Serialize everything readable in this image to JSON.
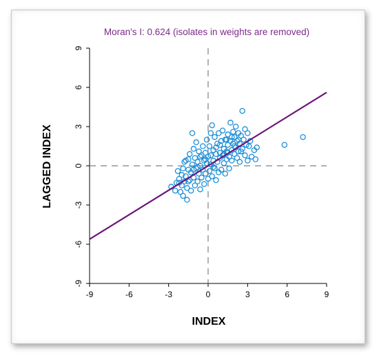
{
  "chart_data": {
    "type": "scatter",
    "title": "Moran's I: 0.624 (isolates in weights are removed)",
    "xlabel": "INDEX",
    "ylabel": "LAGGED INDEX",
    "xlim": [
      -9,
      9
    ],
    "ylim": [
      -9,
      9
    ],
    "xticks": [
      "-9",
      "-6",
      "-3",
      "0",
      "3",
      "6",
      "9"
    ],
    "yticks": [
      "9",
      "6",
      "3",
      "0",
      "-3",
      "-6",
      "-9"
    ],
    "regression_line": {
      "slope": 0.624,
      "intercept": 0
    },
    "reference_lines": [
      "x = 0",
      "y = 0"
    ],
    "colors": {
      "points": "#1f8fd8",
      "regression": "#6b1478",
      "title": "#7b2a8a",
      "reference": "#7f7f7f"
    },
    "points": [
      [
        -2.8,
        -1.6
      ],
      [
        -2.5,
        -1.9
      ],
      [
        -2.4,
        -1.3
      ],
      [
        -2.3,
        -0.4
      ],
      [
        -2.2,
        -1.0
      ],
      [
        -2.1,
        -2.0
      ],
      [
        -2.0,
        -0.7
      ],
      [
        -2.0,
        -1.5
      ],
      [
        -1.9,
        -2.3
      ],
      [
        -1.9,
        -0.2
      ],
      [
        -1.8,
        -1.2
      ],
      [
        -1.8,
        0.3
      ],
      [
        -1.7,
        -0.8
      ],
      [
        -1.6,
        -2.6
      ],
      [
        -1.6,
        -1.7
      ],
      [
        -1.5,
        0.5
      ],
      [
        -1.5,
        -0.3
      ],
      [
        -1.4,
        -1.1
      ],
      [
        -1.4,
        0.9
      ],
      [
        -1.3,
        -0.5
      ],
      [
        -1.3,
        -1.9
      ],
      [
        -1.2,
        0.1
      ],
      [
        -1.2,
        2.5
      ],
      [
        -1.1,
        -0.9
      ],
      [
        -1.1,
        1.3
      ],
      [
        -1.0,
        -1.5
      ],
      [
        -1.0,
        0.6
      ],
      [
        -0.9,
        -0.2
      ],
      [
        -0.9,
        1.8
      ],
      [
        -0.8,
        -1.2
      ],
      [
        -0.8,
        0.3
      ],
      [
        -0.7,
        -0.6
      ],
      [
        -0.7,
        1.1
      ],
      [
        -0.6,
        -1.8
      ],
      [
        -0.6,
        0.0
      ],
      [
        -0.5,
        0.8
      ],
      [
        -0.5,
        -0.9
      ],
      [
        -0.4,
        1.5
      ],
      [
        -0.4,
        -0.3
      ],
      [
        -0.3,
        0.4
      ],
      [
        -0.3,
        -1.4
      ],
      [
        -0.2,
        1.0
      ],
      [
        -0.2,
        -0.6
      ],
      [
        -0.1,
        0.2
      ],
      [
        -0.1,
        2.0
      ],
      [
        0.0,
        -1.0
      ],
      [
        0.0,
        0.7
      ],
      [
        0.1,
        1.5
      ],
      [
        0.1,
        -0.4
      ],
      [
        0.2,
        2.5
      ],
      [
        0.2,
        0.1
      ],
      [
        0.3,
        3.1
      ],
      [
        0.3,
        -0.8
      ],
      [
        0.4,
        1.2
      ],
      [
        0.4,
        0.4
      ],
      [
        0.5,
        2.2
      ],
      [
        0.5,
        -0.2
      ],
      [
        0.6,
        0.9
      ],
      [
        0.6,
        -1.1
      ],
      [
        0.7,
        1.7
      ],
      [
        0.7,
        0.3
      ],
      [
        0.8,
        2.5
      ],
      [
        0.8,
        -0.5
      ],
      [
        0.9,
        1.0
      ],
      [
        0.9,
        0.6
      ],
      [
        1.0,
        1.9
      ],
      [
        1.0,
        -0.3
      ],
      [
        1.1,
        0.8
      ],
      [
        1.1,
        2.7
      ],
      [
        1.2,
        1.3
      ],
      [
        1.2,
        0.2
      ],
      [
        1.3,
        2.0
      ],
      [
        1.3,
        -0.6
      ],
      [
        1.4,
        1.1
      ],
      [
        1.4,
        0.5
      ],
      [
        1.5,
        2.4
      ],
      [
        1.5,
        1.6
      ],
      [
        1.6,
        0.7
      ],
      [
        1.6,
        -0.2
      ],
      [
        1.7,
        1.9
      ],
      [
        1.7,
        3.3
      ],
      [
        1.8,
        1.2
      ],
      [
        1.8,
        0.4
      ],
      [
        1.9,
        2.6
      ],
      [
        1.9,
        1.7
      ],
      [
        2.0,
        0.9
      ],
      [
        2.0,
        2.2
      ],
      [
        2.1,
        1.4
      ],
      [
        2.1,
        3.0
      ],
      [
        2.2,
        0.6
      ],
      [
        2.2,
        1.9
      ],
      [
        2.3,
        2.5
      ],
      [
        2.3,
        1.1
      ],
      [
        2.4,
        0.3
      ],
      [
        2.4,
        1.7
      ],
      [
        2.5,
        2.3
      ],
      [
        2.6,
        1.3
      ],
      [
        2.6,
        4.2
      ],
      [
        2.7,
        2.0
      ],
      [
        2.8,
        0.8
      ],
      [
        2.8,
        2.8
      ],
      [
        2.9,
        1.6
      ],
      [
        3.0,
        2.5
      ],
      [
        3.0,
        0.4
      ],
      [
        3.2,
        1.9
      ],
      [
        3.3,
        0.7
      ],
      [
        3.5,
        1.2
      ],
      [
        3.6,
        0.5
      ],
      [
        3.7,
        1.4
      ],
      [
        5.8,
        1.6
      ],
      [
        7.2,
        2.2
      ],
      [
        -1.7,
        0.4
      ],
      [
        -1.1,
        -0.3
      ],
      [
        -0.6,
        0.7
      ],
      [
        0.2,
        0.8
      ],
      [
        0.9,
        1.6
      ],
      [
        1.4,
        2.0
      ],
      [
        2.0,
        1.5
      ],
      [
        2.5,
        1.1
      ],
      [
        3.1,
        1.5
      ],
      [
        -2.2,
        -1.3
      ],
      [
        -1.5,
        -1.2
      ],
      [
        -0.8,
        -0.1
      ],
      [
        0.4,
        -0.1
      ],
      [
        1.2,
        0.9
      ],
      [
        1.8,
        2.2
      ],
      [
        2.3,
        2.0
      ],
      [
        -0.2,
        0.5
      ],
      [
        0.6,
        1.4
      ],
      [
        1.5,
        1.0
      ]
    ]
  }
}
